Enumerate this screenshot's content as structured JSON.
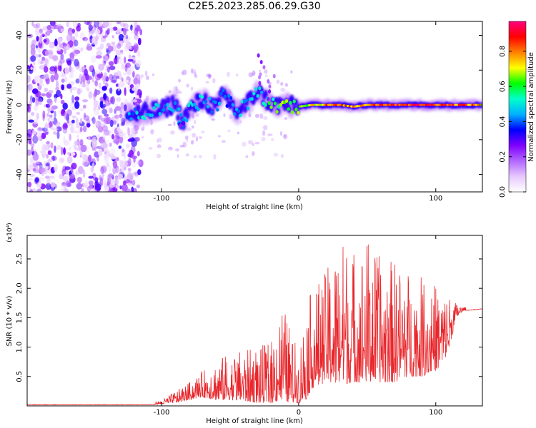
{
  "title": "C2E5.2023.285.06.29.G30",
  "chart_data": [
    {
      "type": "heatmap",
      "xlabel": "Height of straight line (km)",
      "ylabel": "Frequency (Hz)",
      "xlim": [
        -198,
        134
      ],
      "ylim": [
        -50,
        48
      ],
      "x_ticks": [
        "-100",
        "0",
        "100"
      ],
      "y_ticks": [
        "40",
        "20",
        "0",
        "-20",
        "-40"
      ],
      "grid": false,
      "colorbar": {
        "label": "Normalized spectral amplitude",
        "range": [
          0,
          0.97
        ],
        "ticks": [
          "0.0",
          "0.2",
          "0.4",
          "0.6",
          "0.8"
        ],
        "colormap": [
          "#ffffff",
          "#e6c8ff",
          "#b266ff",
          "#8000ff",
          "#0000ff",
          "#00b0ff",
          "#00ffcc",
          "#00ff00",
          "#ffff00",
          "#ff8000",
          "#ff0000",
          "#ff0080"
        ]
      },
      "noise_region_x": [
        -198,
        -115
      ],
      "ridge": [
        {
          "x": -120,
          "y": -6,
          "a": 0.45
        },
        {
          "x": -110,
          "y": -4,
          "a": 0.5
        },
        {
          "x": -100,
          "y": -3,
          "a": 0.45
        },
        {
          "x": -90,
          "y": 1,
          "a": 0.5
        },
        {
          "x": -85,
          "y": -10,
          "a": 0.4
        },
        {
          "x": -80,
          "y": -3,
          "a": 0.5
        },
        {
          "x": -70,
          "y": 3,
          "a": 0.5
        },
        {
          "x": -60,
          "y": -2,
          "a": 0.45
        },
        {
          "x": -55,
          "y": 6,
          "a": 0.4
        },
        {
          "x": -45,
          "y": -4,
          "a": 0.45
        },
        {
          "x": -38,
          "y": 0,
          "a": 0.5
        },
        {
          "x": -30,
          "y": 8,
          "a": 0.45
        },
        {
          "x": -28,
          "y": 28,
          "a": 0.25
        },
        {
          "x": -20,
          "y": 16,
          "a": 0.25
        },
        {
          "x": -20,
          "y": 0,
          "a": 0.6
        },
        {
          "x": -10,
          "y": 0,
          "a": 0.65
        },
        {
          "x": 0,
          "y": -1,
          "a": 0.7
        },
        {
          "x": 10,
          "y": 0,
          "a": 0.75
        },
        {
          "x": 20,
          "y": 0,
          "a": 0.8
        },
        {
          "x": 30,
          "y": 0,
          "a": 0.8
        },
        {
          "x": 40,
          "y": -1,
          "a": 0.8
        },
        {
          "x": 50,
          "y": 0,
          "a": 0.85
        },
        {
          "x": 60,
          "y": 0,
          "a": 0.9
        },
        {
          "x": 70,
          "y": 0,
          "a": 0.92
        },
        {
          "x": 80,
          "y": 0,
          "a": 0.92
        },
        {
          "x": 90,
          "y": 0,
          "a": 0.92
        },
        {
          "x": 100,
          "y": 0,
          "a": 0.92
        },
        {
          "x": 110,
          "y": 0,
          "a": 0.9
        },
        {
          "x": 120,
          "y": 0,
          "a": 0.85
        },
        {
          "x": 134,
          "y": 0,
          "a": 0.8
        }
      ]
    },
    {
      "type": "line",
      "xlabel": "Height of straight line (km)",
      "ylabel": "SNR (10 * v/v)",
      "y_multiplier": "(x10⁴)",
      "xlim": [
        -198,
        134
      ],
      "ylim": [
        0,
        2.9
      ],
      "x_ticks": [
        "-100",
        "0",
        "100"
      ],
      "y_ticks": [
        "2.5",
        "2.0",
        "1.5",
        "1.0",
        "0.5"
      ],
      "grid": false,
      "series": [
        {
          "color": "#e8262b",
          "envelope": {
            "x": [
              -198,
              -120,
              -110,
              -100,
              -90,
              -80,
              -70,
              -60,
              -50,
              -40,
              -30,
              -20,
              -12,
              -5,
              0,
              5,
              10,
              20,
              30,
              40,
              50,
              60,
              70,
              80,
              90,
              100,
              105,
              110,
              115,
              120,
              134
            ],
            "low": [
              0.02,
              0.02,
              0.02,
              0.03,
              0.05,
              0.1,
              0.15,
              0.1,
              0.1,
              0.08,
              0.05,
              0.05,
              0.1,
              0.05,
              0.05,
              0.1,
              0.3,
              0.4,
              0.35,
              0.4,
              0.4,
              0.4,
              0.4,
              0.5,
              0.5,
              0.6,
              0.7,
              1.0,
              1.5,
              1.62,
              1.65
            ],
            "high": [
              0.02,
              0.03,
              0.05,
              0.1,
              0.25,
              0.4,
              0.6,
              0.8,
              0.9,
              0.95,
              1.0,
              1.1,
              1.8,
              1.2,
              1.0,
              1.7,
              2.0,
              2.3,
              2.9,
              2.7,
              2.9,
              2.5,
              2.5,
              2.3,
              2.2,
              2.1,
              2.0,
              1.9,
              1.75,
              1.68,
              1.65
            ]
          }
        }
      ]
    }
  ]
}
